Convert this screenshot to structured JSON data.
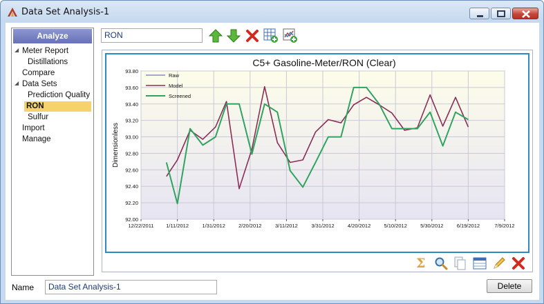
{
  "window": {
    "title": "Data Set Analysis-1"
  },
  "sidebar": {
    "header": "Analyze",
    "items": [
      {
        "label": "Meter Report"
      },
      {
        "label": "Distillations"
      },
      {
        "label": "Compare"
      },
      {
        "label": "Data Sets"
      },
      {
        "label": "Prediction Quality"
      },
      {
        "label": "RON"
      },
      {
        "label": "Sulfur"
      },
      {
        "label": "Import"
      },
      {
        "label": "Manage"
      }
    ]
  },
  "toolbar": {
    "selected_value": "RON",
    "icons": [
      "move-up-icon",
      "move-down-icon",
      "delete-icon",
      "add-table-icon",
      "add-chart-icon"
    ]
  },
  "bottom_toolbar": {
    "icons": [
      "sum-icon",
      "zoom-icon",
      "copy-icon",
      "table-icon",
      "edit-icon",
      "delete-icon"
    ]
  },
  "footer": {
    "name_label": "Name",
    "name_value": "Data Set Analysis-1",
    "delete_label": "Delete"
  },
  "colors": {
    "raw": "#8a8acb",
    "model": "#8b2d58",
    "screened": "#2fa35f",
    "frame": "#2a8bc4",
    "selection": "#f6d36a"
  },
  "chart_data": {
    "type": "line",
    "title": "C5+ Gasoline-Meter/RON (Clear)",
    "xlabel": "",
    "ylabel": "Dimensionless",
    "ylim": [
      92.0,
      93.8
    ],
    "yticks": [
      "92.00",
      "92.20",
      "92.40",
      "92.60",
      "92.80",
      "93.00",
      "93.20",
      "93.40",
      "93.60",
      "93.80"
    ],
    "xticks": [
      "12/22/2011",
      "1/11/2012",
      "1/31/2012",
      "2/20/2012",
      "3/11/2012",
      "3/31/2012",
      "4/20/2012",
      "5/10/2012",
      "5/30/2012",
      "6/19/2012",
      "7/9/2012"
    ],
    "legend": [
      "Raw",
      "Model",
      "Screened"
    ],
    "legend_position": "top-left",
    "grid": true,
    "series": [
      {
        "name": "Model",
        "x": [
          "2012-01-05",
          "2012-01-11",
          "2012-01-18",
          "2012-01-25",
          "2012-02-01",
          "2012-02-07",
          "2012-02-14",
          "2012-02-21",
          "2012-02-28",
          "2012-03-06",
          "2012-03-13",
          "2012-03-20",
          "2012-03-27",
          "2012-04-03",
          "2012-04-10",
          "2012-04-17",
          "2012-04-24",
          "2012-05-01",
          "2012-05-08",
          "2012-05-15",
          "2012-05-22",
          "2012-05-29",
          "2012-06-05",
          "2012-06-12",
          "2012-06-19"
        ],
        "values": [
          92.52,
          92.72,
          93.08,
          92.97,
          93.12,
          93.43,
          92.37,
          92.85,
          93.61,
          92.93,
          92.69,
          92.72,
          93.06,
          93.21,
          93.17,
          93.39,
          93.48,
          93.39,
          93.29,
          93.08,
          93.11,
          93.51,
          93.13,
          93.48,
          93.12
        ]
      },
      {
        "name": "Screened",
        "x": [
          "2012-01-05",
          "2012-01-11",
          "2012-01-18",
          "2012-01-25",
          "2012-02-01",
          "2012-02-07",
          "2012-02-14",
          "2012-02-21",
          "2012-02-28",
          "2012-03-06",
          "2012-03-13",
          "2012-03-20",
          "2012-03-27",
          "2012-04-03",
          "2012-04-10",
          "2012-04-17",
          "2012-04-24",
          "2012-05-01",
          "2012-05-08",
          "2012-05-15",
          "2012-05-22",
          "2012-05-29",
          "2012-06-05",
          "2012-06-12",
          "2012-06-19"
        ],
        "values": [
          92.69,
          92.19,
          93.1,
          92.9,
          93.0,
          93.4,
          93.4,
          92.79,
          93.4,
          93.3,
          92.59,
          92.39,
          92.69,
          93.0,
          93.0,
          93.6,
          93.6,
          93.4,
          93.1,
          93.1,
          93.1,
          93.3,
          92.89,
          93.3,
          93.21
        ]
      }
    ]
  }
}
